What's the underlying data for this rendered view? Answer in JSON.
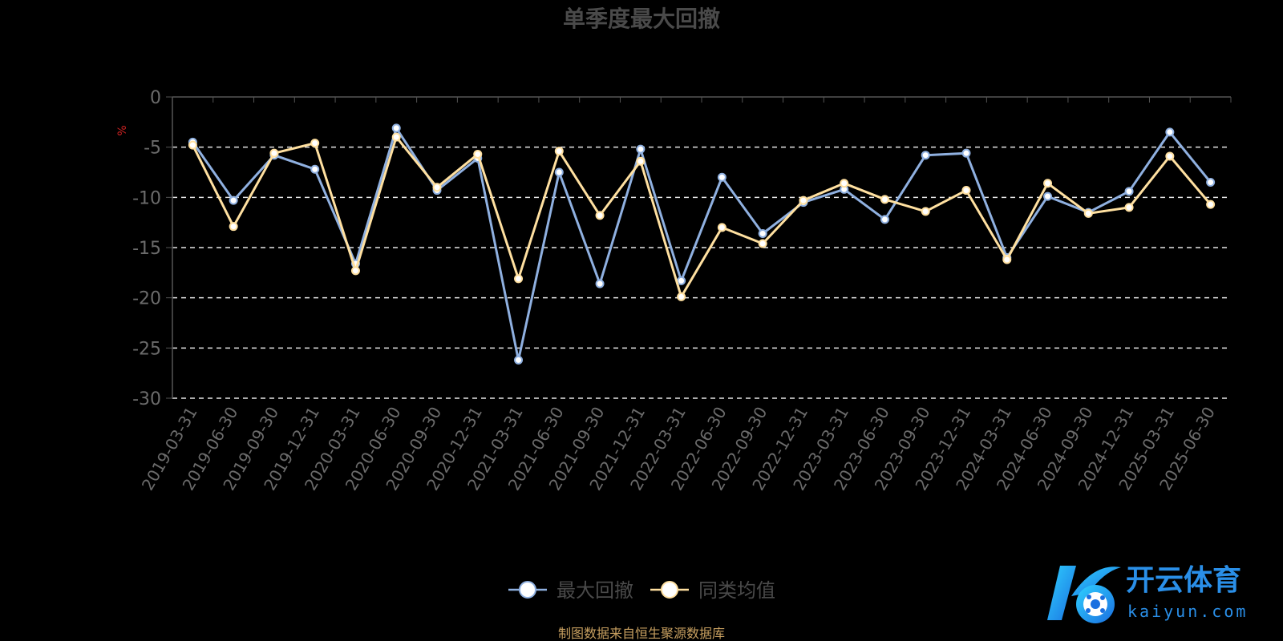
{
  "chart_data": {
    "type": "line",
    "title": "单季度最大回撤",
    "ylabel": "%",
    "ylim": [
      -30,
      0
    ],
    "yticks": [
      "0",
      "-5",
      "-10",
      "-15",
      "-20",
      "-25",
      "-30"
    ],
    "categories": [
      "2019-03-31",
      "2019-06-30",
      "2019-09-30",
      "2019-12-31",
      "2020-03-31",
      "2020-06-30",
      "2020-09-30",
      "2020-12-31",
      "2021-03-31",
      "2021-06-30",
      "2021-09-30",
      "2021-12-31",
      "2022-03-31",
      "2022-06-30",
      "2022-09-30",
      "2022-12-31",
      "2023-03-31",
      "2023-06-30",
      "2023-09-30",
      "2023-12-31",
      "2024-03-31",
      "2024-06-30",
      "2024-09-30",
      "2024-12-31",
      "2025-03-31",
      "2025-06-30"
    ],
    "series": [
      {
        "name": "最大回撤",
        "color": "#8fb0e0",
        "values": [
          -4.5,
          -10.3,
          -5.8,
          -7.2,
          -16.6,
          -3.1,
          -9.3,
          -6.1,
          -26.2,
          -7.5,
          -18.6,
          -5.2,
          -18.3,
          -8.0,
          -13.6,
          -10.5,
          -9.2,
          -12.2,
          -5.8,
          -5.6,
          -16.0,
          -9.9,
          -11.5,
          -9.4,
          -3.5,
          -8.5
        ]
      },
      {
        "name": "同类均值",
        "color": "#ffe0a0",
        "values": [
          -4.8,
          -12.9,
          -5.6,
          -4.6,
          -17.3,
          -4.0,
          -9.0,
          -5.7,
          -18.1,
          -5.4,
          -11.8,
          -6.4,
          -19.9,
          -13.0,
          -14.6,
          -10.3,
          -8.6,
          -10.2,
          -11.4,
          -9.3,
          -16.2,
          -8.6,
          -11.6,
          -11.0,
          -5.9,
          -10.7
        ]
      }
    ],
    "grid": true,
    "legend_position": "bottom",
    "source_text": "制图数据来自恒生聚源数据库",
    "source_color": "#c8a060",
    "text_color": "#6b6b6b"
  },
  "watermark": {
    "brand_cn": "开云体育",
    "brand_en": "kaiyun.com"
  }
}
